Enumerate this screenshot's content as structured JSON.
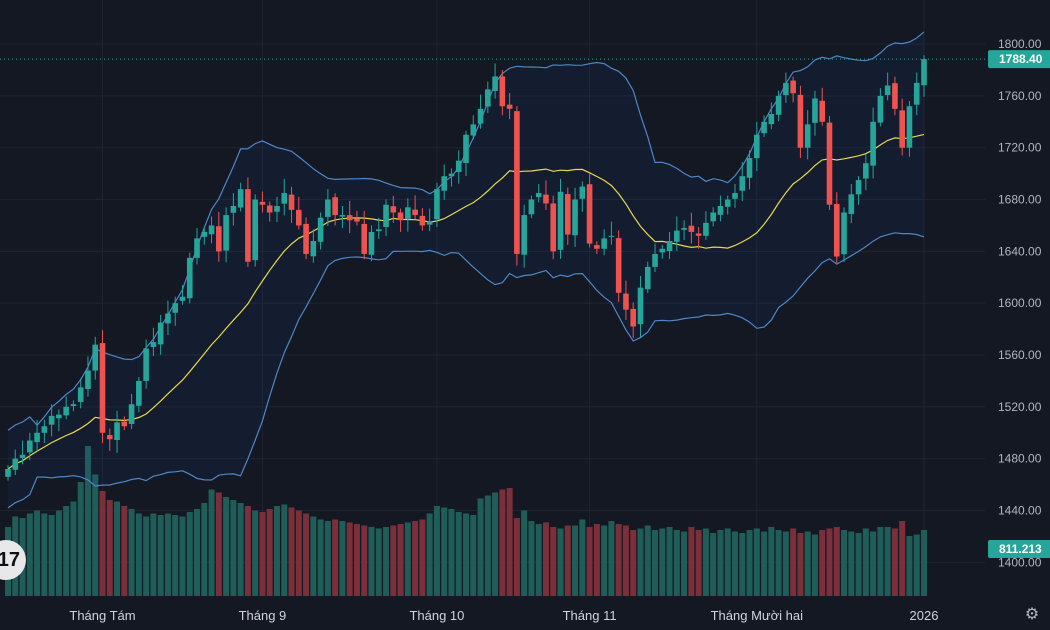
{
  "logo": {
    "text": "17"
  },
  "icons": {
    "settings": "settings-gear-icon"
  },
  "colors": {
    "background": "#141823",
    "up": "#26a69a",
    "down": "#ef5350",
    "volume_up": "#1f5d58",
    "volume_down": "#7a2f3a",
    "bb_band": "#2962ff",
    "bb_line": "#4f86c6",
    "basis": "#e6d84a",
    "grid": "#1f2431"
  },
  "chart_data": {
    "type": "candlestick",
    "title": "",
    "price_axis": {
      "ticks": [
        "1800.00",
        "1760.00",
        "1720.00",
        "1680.00",
        "1640.00",
        "1600.00",
        "1560.00",
        "1520.00",
        "1480.00",
        "1440.00",
        "1400.00"
      ],
      "tick_values": [
        1800,
        1760,
        1720,
        1680,
        1640,
        1600,
        1560,
        1520,
        1480,
        1440,
        1400
      ],
      "range": [
        1374,
        1834
      ]
    },
    "time_axis": {
      "labels": [
        "Tháng Tám",
        "Tháng 9",
        "Tháng 10",
        "Tháng 11",
        "Tháng Mười hai",
        "2026"
      ],
      "label_bar_index": [
        13,
        35,
        59,
        80,
        103,
        126
      ]
    },
    "last_price": {
      "label": "1788.40",
      "value": 1788.4
    },
    "last_volume": {
      "label": "811.213"
    },
    "series_close": [
      1472,
      1480,
      1483,
      1494,
      1500,
      1505,
      1513,
      1514,
      1520,
      1522,
      1535,
      1548,
      1568,
      1500,
      1495,
      1508,
      1505,
      1522,
      1540,
      1565,
      1570,
      1585,
      1592,
      1600,
      1605,
      1635,
      1650,
      1655,
      1660,
      1640,
      1668,
      1675,
      1688,
      1632,
      1680,
      1676,
      1670,
      1675,
      1685,
      1672,
      1660,
      1638,
      1648,
      1666,
      1680,
      1668,
      1668,
      1664,
      1663,
      1638,
      1655,
      1657,
      1676,
      1670,
      1664,
      1674,
      1668,
      1660,
      1663,
      1688,
      1698,
      1700,
      1710,
      1730,
      1738,
      1750,
      1765,
      1775,
      1752,
      1750,
      1638,
      1668,
      1680,
      1685,
      1677,
      1640,
      1686,
      1653,
      1680,
      1690,
      1646,
      1642,
      1650,
      1652,
      1608,
      1595,
      1582,
      1612,
      1628,
      1638,
      1642,
      1648,
      1656,
      1658,
      1655,
      1652,
      1662,
      1670,
      1675,
      1680,
      1685,
      1698,
      1712,
      1730,
      1740,
      1746,
      1760,
      1770,
      1762,
      1720,
      1738,
      1758,
      1740,
      1676,
      1636,
      1670,
      1684,
      1695,
      1708,
      1740,
      1760,
      1768,
      1750,
      1720,
      1752,
      1770,
      1788.4
    ],
    "volume_relative": [
      0.46,
      0.53,
      0.52,
      0.55,
      0.57,
      0.55,
      0.54,
      0.57,
      0.6,
      0.63,
      0.76,
      1.0,
      0.81,
      0.7,
      0.64,
      0.63,
      0.6,
      0.58,
      0.55,
      0.53,
      0.55,
      0.54,
      0.55,
      0.54,
      0.53,
      0.56,
      0.58,
      0.62,
      0.71,
      0.69,
      0.66,
      0.64,
      0.62,
      0.6,
      0.57,
      0.56,
      0.58,
      0.6,
      0.61,
      0.59,
      0.57,
      0.55,
      0.53,
      0.51,
      0.5,
      0.51,
      0.5,
      0.49,
      0.48,
      0.47,
      0.46,
      0.45,
      0.46,
      0.47,
      0.48,
      0.49,
      0.5,
      0.51,
      0.55,
      0.6,
      0.59,
      0.58,
      0.56,
      0.55,
      0.54,
      0.65,
      0.67,
      0.69,
      0.71,
      0.72,
      0.52,
      0.57,
      0.5,
      0.48,
      0.49,
      0.46,
      0.45,
      0.47,
      0.47,
      0.51,
      0.46,
      0.48,
      0.47,
      0.5,
      0.48,
      0.47,
      0.44,
      0.45,
      0.47,
      0.44,
      0.45,
      0.46,
      0.44,
      0.43,
      0.46,
      0.44,
      0.45,
      0.42,
      0.44,
      0.45,
      0.43,
      0.42,
      0.44,
      0.45,
      0.43,
      0.46,
      0.44,
      0.43,
      0.45,
      0.42,
      0.43,
      0.41,
      0.44,
      0.45,
      0.46,
      0.44,
      0.43,
      0.42,
      0.45,
      0.43,
      0.46,
      0.46,
      0.45,
      0.5,
      0.4,
      0.41,
      0.44
    ],
    "indicators": [
      "Bollinger Bands (upper, basis, lower)",
      "Volume"
    ]
  }
}
